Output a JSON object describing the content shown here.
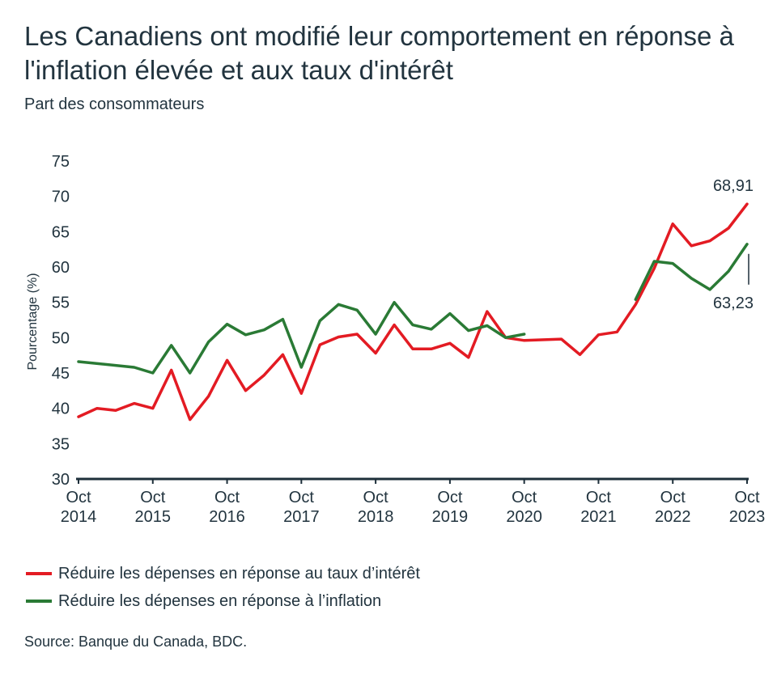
{
  "chart_data": {
    "type": "line",
    "title": "Les Canadiens ont modifié leur comportement en réponse à l'inflation élevée et aux taux d'intérêt",
    "subtitle": "Part des consommateurs",
    "ylabel": "Pourcentage (%)",
    "ylim": [
      30,
      75
    ],
    "yticks": [
      30,
      35,
      40,
      45,
      50,
      55,
      60,
      65,
      70,
      75
    ],
    "xlim": [
      2014.75,
      2023.75
    ],
    "xticks": [
      {
        "x": 2014.75,
        "line1": "Oct",
        "line2": "2014"
      },
      {
        "x": 2015.75,
        "line1": "Oct",
        "line2": "2015"
      },
      {
        "x": 2016.75,
        "line1": "Oct",
        "line2": "2016"
      },
      {
        "x": 2017.75,
        "line1": "Oct",
        "line2": "2017"
      },
      {
        "x": 2018.75,
        "line1": "Oct",
        "line2": "2018"
      },
      {
        "x": 2019.75,
        "line1": "Oct",
        "line2": "2019"
      },
      {
        "x": 2020.75,
        "line1": "Oct",
        "line2": "2020"
      },
      {
        "x": 2021.75,
        "line1": "Oct",
        "line2": "2021"
      },
      {
        "x": 2022.75,
        "line1": "Oct",
        "line2": "2022"
      },
      {
        "x": 2023.75,
        "line1": "Oct",
        "line2": "2023"
      }
    ],
    "grid": false,
    "legend_placement": "bottom",
    "series": [
      {
        "name": "Réduire les dépenses en réponse au taux d’intérêt",
        "color": "#e31b23",
        "segments": [
          [
            [
              2014.75,
              38.8
            ],
            [
              2015.0,
              40.0
            ],
            [
              2015.25,
              39.7
            ],
            [
              2015.5,
              40.7
            ],
            [
              2015.75,
              40.0
            ],
            [
              2016.0,
              45.4
            ],
            [
              2016.25,
              38.4
            ],
            [
              2016.5,
              41.7
            ],
            [
              2016.75,
              46.8
            ],
            [
              2017.0,
              42.5
            ],
            [
              2017.25,
              44.7
            ],
            [
              2017.5,
              47.6
            ],
            [
              2017.75,
              42.1
            ],
            [
              2018.0,
              49.0
            ],
            [
              2018.25,
              50.1
            ],
            [
              2018.5,
              50.5
            ],
            [
              2018.75,
              47.8
            ],
            [
              2019.0,
              51.8
            ],
            [
              2019.25,
              48.4
            ],
            [
              2019.5,
              48.4
            ],
            [
              2019.75,
              49.2
            ],
            [
              2020.0,
              47.2
            ],
            [
              2020.25,
              53.7
            ],
            [
              2020.5,
              50.0
            ],
            [
              2020.75,
              49.6
            ],
            [
              2021.25,
              49.8
            ],
            [
              2021.5,
              47.6
            ],
            [
              2021.75,
              50.4
            ],
            [
              2022.0,
              50.8
            ],
            [
              2022.25,
              54.7
            ],
            [
              2022.5,
              59.8
            ],
            [
              2022.75,
              66.1
            ],
            [
              2023.0,
              63.0
            ],
            [
              2023.25,
              63.7
            ],
            [
              2023.5,
              65.5
            ],
            [
              2023.75,
              68.91
            ]
          ]
        ]
      },
      {
        "name": "Réduire les dépenses en réponse à l’inflation",
        "color": "#2a7a35",
        "segments": [
          [
            [
              2014.75,
              46.6
            ],
            [
              2015.5,
              45.8
            ],
            [
              2015.75,
              45.0
            ],
            [
              2016.0,
              48.9
            ],
            [
              2016.25,
              45.0
            ],
            [
              2016.5,
              49.4
            ],
            [
              2016.75,
              51.9
            ],
            [
              2017.0,
              50.4
            ],
            [
              2017.25,
              51.1
            ],
            [
              2017.5,
              52.6
            ],
            [
              2017.75,
              45.8
            ],
            [
              2018.0,
              52.4
            ],
            [
              2018.25,
              54.7
            ],
            [
              2018.5,
              53.9
            ],
            [
              2018.75,
              50.5
            ],
            [
              2019.0,
              55.0
            ],
            [
              2019.25,
              51.8
            ],
            [
              2019.5,
              51.2
            ],
            [
              2019.75,
              53.4
            ],
            [
              2020.0,
              51.0
            ],
            [
              2020.25,
              51.7
            ],
            [
              2020.5,
              50.0
            ],
            [
              2020.75,
              50.5
            ]
          ],
          [
            [
              2022.25,
              55.4
            ],
            [
              2022.5,
              60.8
            ],
            [
              2022.75,
              60.5
            ],
            [
              2023.0,
              58.4
            ],
            [
              2023.25,
              56.8
            ],
            [
              2023.5,
              59.4
            ],
            [
              2023.75,
              63.23
            ]
          ]
        ]
      }
    ],
    "annotations": [
      {
        "series": 0,
        "text": "68,91",
        "color": "#e31b23",
        "placement": "above"
      },
      {
        "series": 1,
        "text": "63,23",
        "color": "#2a7a35",
        "placement": "below"
      }
    ]
  },
  "source": "Source: Banque du Canada, BDC."
}
